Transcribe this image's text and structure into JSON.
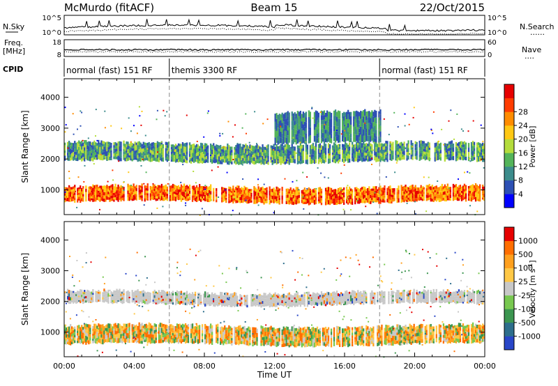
{
  "header": {
    "station": "McMurdo (fitACF)",
    "beam": "Beam 15",
    "date": "22/Oct/2015"
  },
  "side_labels": {
    "n_sky": "N.Sky",
    "n_search": "N.Search",
    "freq": "Freq.",
    "freq_unit": "[MHz]",
    "nave": "Nave",
    "cpid": "CPID",
    "noise_dotted": "......",
    "nave_dotted": "...."
  },
  "chart_data": [
    {
      "type": "line",
      "panel": "noise",
      "yticks_left": [
        "10^5",
        "10^0"
      ],
      "yticks_right": [
        "10^5",
        "10^0"
      ],
      "series": [
        {
          "name": "N.Sky",
          "style": "solid"
        },
        {
          "name": "N.Search",
          "style": "dotted"
        }
      ]
    },
    {
      "type": "line",
      "panel": "frequency",
      "yticks_left": [
        "18",
        "8"
      ],
      "yticks_right": [
        "60",
        "0"
      ],
      "ylim_left": [
        8,
        18
      ],
      "ylim_right": [
        0,
        60
      ],
      "series": [
        {
          "name": "Freq.",
          "unit": "MHz",
          "style": "solid",
          "approx_value": 12
        },
        {
          "name": "Nave",
          "style": "dotted"
        }
      ]
    },
    {
      "type": "table",
      "panel": "cpid",
      "segments": [
        {
          "label": "normal (fast) 151 RF",
          "start_hour": 0,
          "end_hour": 6
        },
        {
          "label": "themis 3300 RF",
          "start_hour": 6,
          "end_hour": 18
        },
        {
          "label": "normal (fast) 151 RF",
          "start_hour": 18,
          "end_hour": 24
        }
      ]
    },
    {
      "type": "heatmap",
      "panel": "power",
      "ylabel": "Slant Range [km]",
      "yticks": [
        "1000",
        "2000",
        "3000",
        "4000"
      ],
      "ylim": [
        200,
        4600
      ],
      "xlim": [
        0,
        24
      ],
      "colorbar": {
        "label": "Power [dB]",
        "ticks": [
          "4",
          "8",
          "12",
          "16",
          "20",
          "24",
          "28"
        ],
        "colors": [
          "#0000ff",
          "#2d50b4",
          "#3c8c8c",
          "#54b45a",
          "#b4dc3c",
          "#ffc814",
          "#ff8c00",
          "#ff3c00",
          "#e60000"
        ]
      },
      "bands": [
        {
          "r_start": 600,
          "r_end": 1100,
          "t_start": 0,
          "t_end": 24,
          "dominant": "red-orange"
        },
        {
          "r_start": 1900,
          "r_end": 2500,
          "t_start": 0,
          "t_end": 24,
          "dominant": "green-blue"
        },
        {
          "r_start": 2500,
          "r_end": 3500,
          "t_start": 12,
          "t_end": 18,
          "dominant": "blue-green"
        }
      ]
    },
    {
      "type": "heatmap",
      "panel": "velocity",
      "ylabel": "Slant Range [km]",
      "xlabel": "Time UT",
      "yticks": [
        "1000",
        "2000",
        "3000",
        "4000"
      ],
      "ylim": [
        200,
        4600
      ],
      "xlim": [
        0,
        24
      ],
      "xticks": [
        "00:00",
        "04:00",
        "08:00",
        "12:00",
        "16:00",
        "20:00",
        "00:00"
      ],
      "colorbar": {
        "label": "Velocity [m s",
        "label_sup": "-1",
        "label_end": "]",
        "ticks": [
          "1000",
          "500",
          "100",
          "25",
          "-25",
          "-100",
          "-500",
          "-1000"
        ],
        "colors": [
          "#2846c8",
          "#2d6e8c",
          "#3c9650",
          "#78c850",
          "#c8c8c8",
          "#ffc846",
          "#ffa01e",
          "#ff6e00",
          "#e60000"
        ]
      },
      "bands": [
        {
          "r_start": 600,
          "r_end": 1200,
          "t_start": 0,
          "t_end": 24,
          "dominant": "orange-green"
        },
        {
          "r_start": 1900,
          "r_end": 2300,
          "t_start": 0,
          "t_end": 24,
          "dominant": "grey"
        }
      ]
    }
  ]
}
